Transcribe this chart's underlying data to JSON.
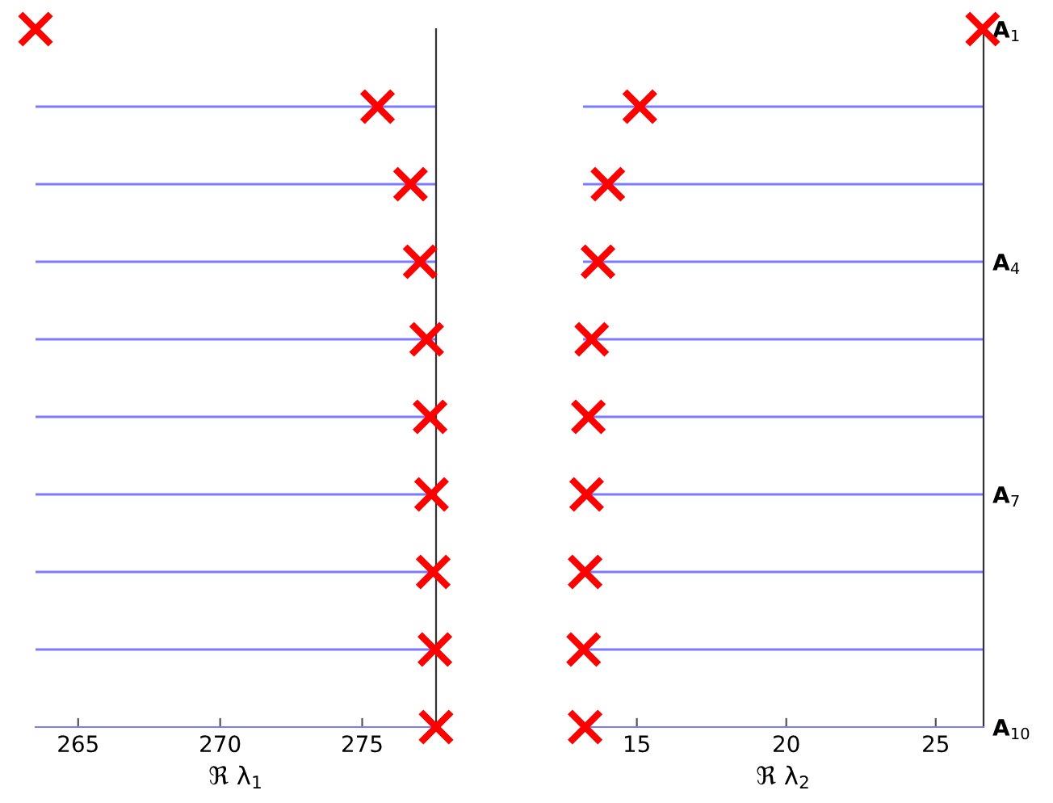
{
  "chart_data": [
    {
      "type": "scatter",
      "xlabel": "ℜ λ$_{1}$",
      "xlim": [
        263.5,
        277.6
      ],
      "xticks": [
        265,
        270,
        275
      ],
      "ylim": [
        10,
        1
      ],
      "marker": "cross",
      "grid": false,
      "series": [
        {
          "color": "#ff0000",
          "x": [
            263.5,
            275.54,
            276.7,
            277.04,
            277.27,
            277.39,
            277.44,
            277.5,
            277.56,
            277.6
          ],
          "values": [
            1,
            2,
            3,
            4,
            5,
            6,
            7,
            8,
            9,
            10
          ]
        }
      ],
      "ref_lines": [
        {
          "axis": "y",
          "value": 2,
          "color": "#7b7bff"
        },
        {
          "axis": "y",
          "value": 3,
          "color": "#7b7bff"
        },
        {
          "axis": "y",
          "value": 4,
          "color": "#7b7bff"
        },
        {
          "axis": "y",
          "value": 5,
          "color": "#7b7bff"
        },
        {
          "axis": "y",
          "value": 6,
          "color": "#7b7bff"
        },
        {
          "axis": "y",
          "value": 7,
          "color": "#7b7bff"
        },
        {
          "axis": "y",
          "value": 8,
          "color": "#7b7bff"
        },
        {
          "axis": "y",
          "value": 9,
          "color": "#7b7bff"
        }
      ]
    },
    {
      "type": "scatter",
      "xlabel": "ℜ λ$_{2}$",
      "xlim": [
        13.2,
        26.6
      ],
      "xticks": [
        15,
        20,
        25
      ],
      "ylim": [
        10,
        1
      ],
      "yticks": [
        {
          "value": 1,
          "label": "A$_{1}$"
        },
        {
          "value": 4,
          "label": "A$_{4}$"
        },
        {
          "value": 7,
          "label": "A$_{7}$"
        },
        {
          "value": 10,
          "label": "A$_{10}$"
        }
      ],
      "marker": "cross",
      "grid": false,
      "series": [
        {
          "color": "#ff0000",
          "x": [
            26.57,
            15.1,
            14.03,
            13.7,
            13.49,
            13.38,
            13.32,
            13.27,
            13.22,
            13.27
          ],
          "values": [
            1,
            2,
            3,
            4,
            5,
            6,
            7,
            8,
            9,
            10
          ]
        }
      ],
      "ref_lines": [
        {
          "axis": "y",
          "value": 2,
          "color": "#7b7bff"
        },
        {
          "axis": "y",
          "value": 3,
          "color": "#7b7bff"
        },
        {
          "axis": "y",
          "value": 4,
          "color": "#7b7bff"
        },
        {
          "axis": "y",
          "value": 5,
          "color": "#7b7bff"
        },
        {
          "axis": "y",
          "value": 6,
          "color": "#7b7bff"
        },
        {
          "axis": "y",
          "value": 7,
          "color": "#7b7bff"
        },
        {
          "axis": "y",
          "value": 8,
          "color": "#7b7bff"
        },
        {
          "axis": "y",
          "value": 9,
          "color": "#7b7bff"
        }
      ]
    }
  ]
}
